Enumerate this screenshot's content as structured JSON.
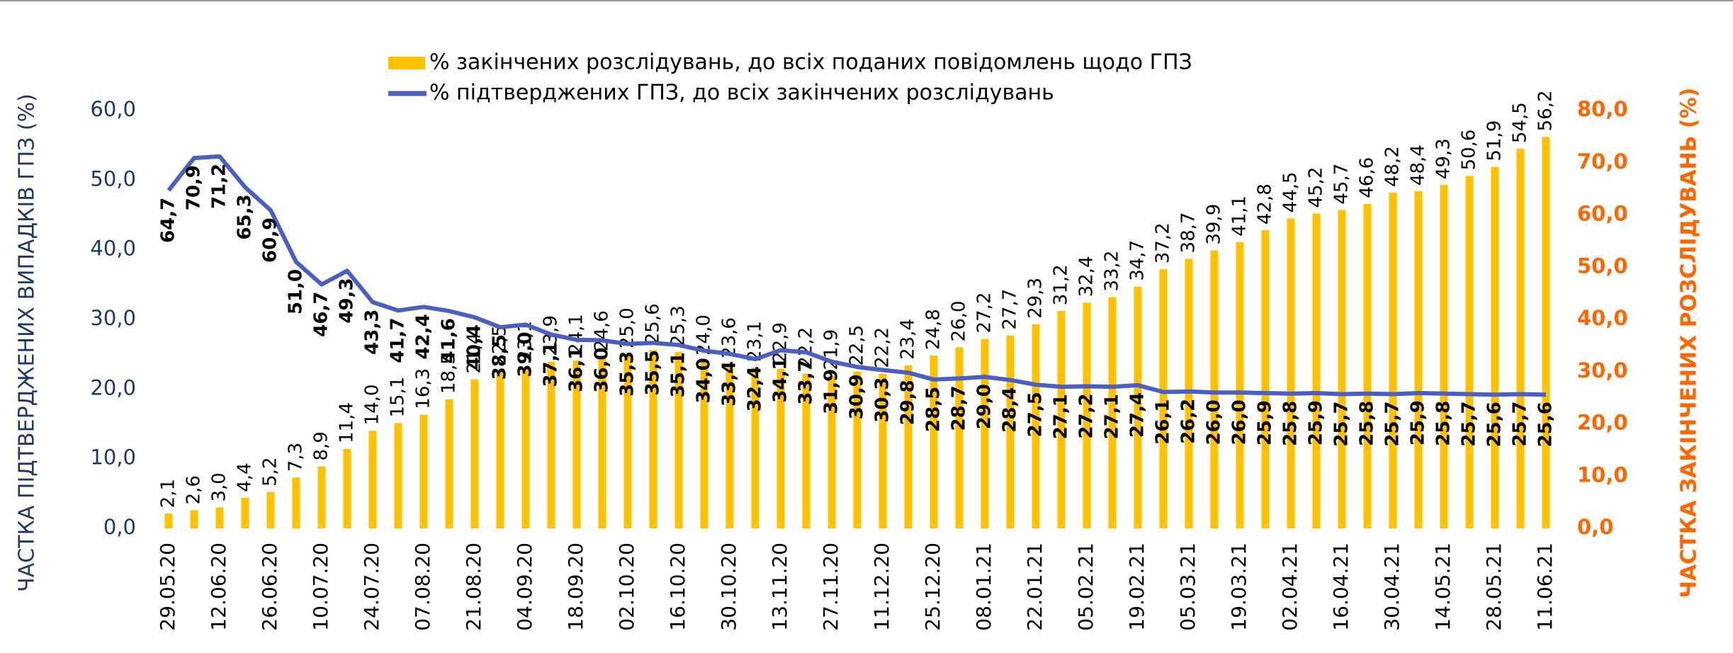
{
  "chart_data": {
    "type": "bar_line",
    "categories": [
      "29.05.20",
      null,
      "12.06.20",
      null,
      "26.06.20",
      null,
      "10.07.20",
      null,
      "24.07.20",
      null,
      "07.08.20",
      null,
      "21.08.20",
      null,
      "04.09.20",
      null,
      "18.09.20",
      null,
      "02.10.20",
      null,
      "16.10.20",
      null,
      "30.10.20",
      null,
      "13.11.20",
      null,
      "27.11.20",
      null,
      "11.12.20",
      null,
      "25.12.20",
      null,
      "08.01.21",
      null,
      "22.01.21",
      null,
      "05.02.21",
      null,
      "19.02.21",
      null,
      "05.03.21",
      null,
      "19.03.21",
      null,
      "02.04.21",
      null,
      "16.04.21",
      null,
      "30.04.21",
      null,
      "14.05.21",
      null,
      "28.05.21",
      null,
      "11.06.21"
    ],
    "series": [
      {
        "name": "% закінчених розслідувань, до всіх поданих повідомлень щодо ГПЗ",
        "color": "#ffc000",
        "kind": "bar",
        "values": [
          2.1,
          2.6,
          3.0,
          4.4,
          5.2,
          7.3,
          8.9,
          11.4,
          14.0,
          15.1,
          16.3,
          18.5,
          21.4,
          22.5,
          23.1,
          23.9,
          24.1,
          24.6,
          25.0,
          25.6,
          25.3,
          24.0,
          23.6,
          23.1,
          22.9,
          22.2,
          21.9,
          22.5,
          22.2,
          23.4,
          24.8,
          26.0,
          27.2,
          27.7,
          29.3,
          31.2,
          32.4,
          33.2,
          34.7,
          37.2,
          38.7,
          39.9,
          41.1,
          42.8,
          44.5,
          45.2,
          45.7,
          46.6,
          48.2,
          48.4,
          49.3,
          50.6,
          51.9,
          54.5,
          56.2
        ],
        "value_labels": [
          "2,1",
          "2,6",
          "3,0",
          "4,4",
          "5,2",
          "7,3",
          "8,9",
          "11,4",
          "14,0",
          "15,1",
          "16,3",
          "18,5",
          "21,4",
          "22,5",
          "23,1",
          "23,9",
          "24,1",
          "24,6",
          "25,0",
          "25,6",
          "25,3",
          "24,0",
          "23,6",
          "23,1",
          "22,9",
          "22,2",
          "21,9",
          "22,5",
          "22,2",
          "23,4",
          "24,8",
          "26,0",
          "27,2",
          "27,7",
          "29,3",
          "31,2",
          "32,4",
          "33,2",
          "34,7",
          "37,2",
          "38,7",
          "39,9",
          "41,1",
          "42,8",
          "44,5",
          "45,2",
          "45,7",
          "46,6",
          "48,2",
          "48,4",
          "49,3",
          "50,6",
          "51,9",
          "54,5",
          "56,2"
        ]
      },
      {
        "name": "% підтверджених ГПЗ, до всіх закінчених розслідувань",
        "color": "#4a5fc1",
        "kind": "line",
        "axis": "y2",
        "values": [
          64.7,
          70.9,
          71.2,
          65.3,
          60.9,
          51.0,
          46.7,
          49.3,
          43.3,
          41.7,
          42.4,
          41.6,
          40.4,
          38.5,
          39.0,
          37.1,
          36.1,
          36.0,
          35.3,
          35.5,
          35.1,
          34.0,
          33.4,
          32.4,
          34.1,
          33.7,
          31.9,
          30.9,
          30.3,
          29.8,
          28.5,
          28.7,
          29.0,
          28.4,
          27.5,
          27.1,
          27.2,
          27.1,
          27.4,
          26.1,
          26.2,
          26.0,
          26.0,
          25.9,
          25.8,
          25.9,
          25.7,
          25.8,
          25.7,
          25.9,
          25.8,
          25.7,
          25.6,
          25.7,
          25.6
        ],
        "value_labels": [
          "64,7",
          "70,9",
          "71,2",
          "65,3",
          "60,9",
          "51,0",
          "46,7",
          "49,3",
          "43,3",
          "41,7",
          "42,4",
          "41,6",
          "40,4",
          "38,5",
          "39,0",
          "37,1",
          "36,1",
          "36,0",
          "35,3",
          "35,5",
          "35,1",
          "34,0",
          "33,4",
          "32,4",
          "34,1",
          "33,7",
          "31,9",
          "30,9",
          "30,3",
          "29,8",
          "28,5",
          "28,7",
          "29,0",
          "28,4",
          "27,5",
          "27,1",
          "27,2",
          "27,1",
          "27,4",
          "26,1",
          "26,2",
          "26,0",
          "26,0",
          "25,9",
          "25,8",
          "25,9",
          "25,7",
          "25,8",
          "25,7",
          "25,9",
          "25,8",
          "25,7",
          "25,6",
          "25,7",
          "25,6"
        ]
      }
    ],
    "y_label": "ЧАСТКА ПІДТВЕРДЖЕНИХ ВИПАДКІВ ГПЗ (%)",
    "y2_label": "ЧАСТКА ЗАКІНЧЕНИХ РОЗСЛІДУВАНЬ (%)",
    "ylim": [
      0,
      60
    ],
    "yticks": [
      {
        "value": 0,
        "label": "0,0"
      },
      {
        "value": 10,
        "label": "10,0"
      },
      {
        "value": 20,
        "label": "20,0"
      },
      {
        "value": 30,
        "label": "30,0"
      },
      {
        "value": 40,
        "label": "40,0"
      },
      {
        "value": 50,
        "label": "50,0"
      },
      {
        "value": 60,
        "label": "60,0"
      }
    ],
    "y2lim": [
      0,
      80
    ],
    "y2ticks": [
      {
        "value": 0,
        "label": "0,0"
      },
      {
        "value": 10,
        "label": "10,0"
      },
      {
        "value": 20,
        "label": "20,0"
      },
      {
        "value": 30,
        "label": "30,0"
      },
      {
        "value": 40,
        "label": "40,0"
      },
      {
        "value": 50,
        "label": "50,0"
      },
      {
        "value": 60,
        "label": "60,0"
      },
      {
        "value": 70,
        "label": "70,0"
      },
      {
        "value": 80,
        "label": "80,0"
      }
    ],
    "legend": "top"
  }
}
